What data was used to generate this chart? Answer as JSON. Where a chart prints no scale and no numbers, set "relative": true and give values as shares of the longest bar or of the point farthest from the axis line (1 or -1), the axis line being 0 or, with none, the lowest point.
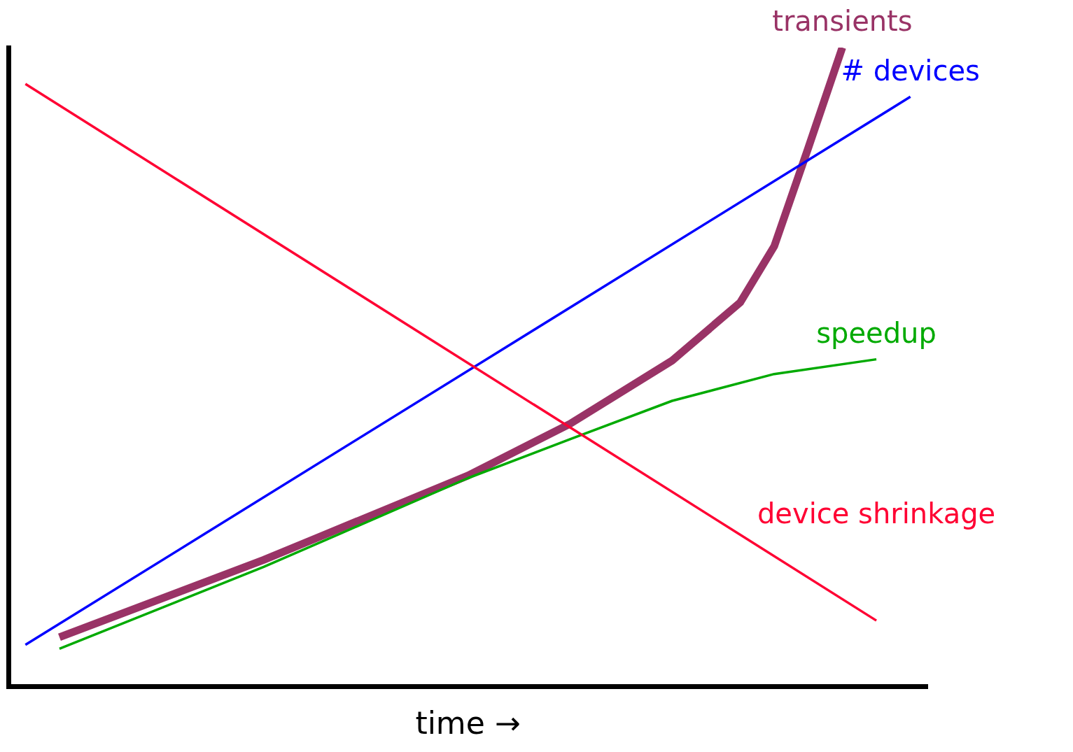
{
  "chart_data": {
    "type": "line",
    "relative": true,
    "xlabel": "time →",
    "grid": false,
    "legend": false,
    "marker": "none",
    "line_style": "solid",
    "categories": [
      null,
      null,
      null,
      null,
      null,
      null,
      null,
      null,
      null,
      null,
      null,
      null,
      null,
      null,
      null,
      null,
      null,
      null,
      null,
      null,
      null,
      null,
      null,
      null,
      null,
      null,
      null
    ],
    "series": [
      {
        "name": "device shrinkage",
        "color": "#ff0033",
        "values": [
          0.943,
          null,
          null,
          null,
          null,
          null,
          null,
          null,
          null,
          null,
          null,
          null,
          null,
          null,
          null,
          null,
          null,
          null,
          null,
          null,
          null,
          null,
          null,
          null,
          null,
          0.103,
          null
        ]
      },
      {
        "name": "# devices",
        "color": "#0000ff",
        "values": [
          0.065,
          null,
          null,
          null,
          null,
          null,
          null,
          null,
          null,
          null,
          null,
          null,
          null,
          null,
          null,
          null,
          null,
          null,
          null,
          null,
          null,
          null,
          null,
          null,
          null,
          null,
          0.923
        ]
      },
      {
        "name": "speedup",
        "color": "#00aa00",
        "values": [
          null,
          0.059,
          null,
          null,
          null,
          null,
          null,
          0.187,
          null,
          null,
          null,
          null,
          null,
          0.326,
          null,
          null,
          0.387,
          null,
          null,
          0.447,
          null,
          null,
          0.489,
          null,
          null,
          0.512,
          null
        ]
      },
      {
        "name": "transients",
        "color": "#993366",
        "values": [
          null,
          0.077,
          null,
          null,
          null,
          null,
          null,
          0.198,
          null,
          null,
          null,
          null,
          null,
          0.33,
          null,
          null,
          0.411,
          null,
          null,
          0.51,
          null,
          0.601,
          0.689,
          0.843,
          1.0,
          null,
          null
        ]
      }
    ]
  }
}
